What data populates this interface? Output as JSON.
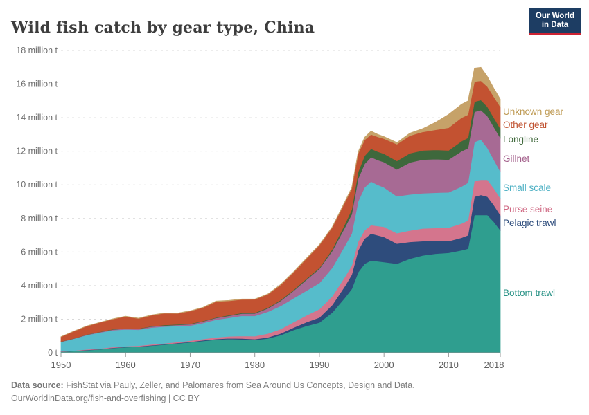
{
  "header": {
    "title": "Wild fish catch by gear type, China",
    "logo": {
      "line1": "Our World",
      "line2": "in Data",
      "bg_color": "#1d3d63",
      "accent_color": "#cd2333"
    }
  },
  "footer": {
    "source_label": "Data source:",
    "source_text": " FishStat via Pauly, Zeller, and Palomares from Sea Around Us Concepts, Design and Data.",
    "url_line": "OurWorldinData.org/fish-and-overfishing | CC BY"
  },
  "chart_data": {
    "type": "area",
    "stacked": true,
    "title": "Wild fish catch by gear type, China",
    "unit": "million t",
    "xlim": [
      1950,
      2018
    ],
    "ylim": [
      0,
      18
    ],
    "grid": "horizontal dashed",
    "legend_position": "right, colored labels next to band ends",
    "x": [
      1950,
      1952,
      1954,
      1956,
      1958,
      1960,
      1962,
      1964,
      1966,
      1968,
      1970,
      1972,
      1974,
      1976,
      1978,
      1980,
      1982,
      1984,
      1986,
      1988,
      1990,
      1992,
      1994,
      1995,
      1996,
      1997,
      1998,
      1999,
      2000,
      2002,
      2004,
      2006,
      2008,
      2010,
      2012,
      2013,
      2014,
      2015,
      2016,
      2017,
      2018
    ],
    "xticks": [
      1950,
      1960,
      1970,
      1980,
      1990,
      2000,
      2010,
      2018
    ],
    "yticks": [
      {
        "v": 0,
        "label": "0 t"
      },
      {
        "v": 2,
        "label": "2 million t"
      },
      {
        "v": 4,
        "label": "4 million t"
      },
      {
        "v": 6,
        "label": "6 million t"
      },
      {
        "v": 8,
        "label": "8 million t"
      },
      {
        "v": 10,
        "label": "10 million t"
      },
      {
        "v": 12,
        "label": "12 million t"
      },
      {
        "v": 14,
        "label": "14 million t"
      },
      {
        "v": 16,
        "label": "16 million t"
      },
      {
        "v": 18,
        "label": "18 million t"
      }
    ],
    "series": [
      {
        "name": "Bottom trawl",
        "color": "#2f9e8f",
        "label_color": "#2a9387",
        "values": [
          0.06,
          0.1,
          0.15,
          0.2,
          0.28,
          0.33,
          0.36,
          0.42,
          0.48,
          0.55,
          0.62,
          0.7,
          0.78,
          0.82,
          0.8,
          0.76,
          0.85,
          1.05,
          1.35,
          1.6,
          1.8,
          2.4,
          3.3,
          3.8,
          4.8,
          5.3,
          5.5,
          5.45,
          5.4,
          5.3,
          5.6,
          5.8,
          5.9,
          5.95,
          6.1,
          6.2,
          8.2,
          8.2,
          8.2,
          7.8,
          7.3
        ]
      },
      {
        "name": "Pelagic trawl",
        "color": "#2e4c7c",
        "label_color": "#2d4c7c",
        "values": [
          0.01,
          0.01,
          0.02,
          0.02,
          0.02,
          0.02,
          0.02,
          0.03,
          0.03,
          0.03,
          0.03,
          0.04,
          0.04,
          0.04,
          0.05,
          0.05,
          0.07,
          0.1,
          0.15,
          0.22,
          0.3,
          0.45,
          0.7,
          0.85,
          1.3,
          1.5,
          1.6,
          1.55,
          1.5,
          1.2,
          1.0,
          0.85,
          0.75,
          0.7,
          0.75,
          0.8,
          1.1,
          1.2,
          1.1,
          1.0,
          0.9
        ]
      },
      {
        "name": "Purse seine",
        "color": "#d4758d",
        "label_color": "#d06a84",
        "values": [
          0.02,
          0.02,
          0.03,
          0.03,
          0.04,
          0.04,
          0.04,
          0.05,
          0.05,
          0.06,
          0.07,
          0.08,
          0.1,
          0.12,
          0.15,
          0.18,
          0.22,
          0.26,
          0.32,
          0.4,
          0.5,
          0.52,
          0.55,
          0.55,
          0.52,
          0.5,
          0.5,
          0.55,
          0.6,
          0.62,
          0.68,
          0.75,
          0.78,
          0.8,
          0.85,
          0.88,
          0.95,
          0.9,
          1.0,
          1.0,
          1.0
        ]
      },
      {
        "name": "Small scale",
        "color": "#56bccb",
        "label_color": "#4fb1c4",
        "values": [
          0.55,
          0.7,
          0.85,
          0.95,
          1.0,
          1.0,
          0.95,
          1.0,
          1.0,
          0.95,
          0.9,
          0.95,
          1.05,
          1.1,
          1.2,
          1.2,
          1.3,
          1.38,
          1.42,
          1.48,
          1.55,
          1.7,
          1.85,
          1.9,
          2.4,
          2.55,
          2.6,
          2.45,
          2.35,
          2.2,
          2.15,
          2.1,
          2.1,
          2.1,
          2.2,
          2.25,
          2.3,
          2.4,
          1.9,
          1.7,
          1.6
        ]
      },
      {
        "name": "Gillnet",
        "color": "#a76a94",
        "label_color": "#a4618c",
        "values": [
          0.02,
          0.02,
          0.03,
          0.03,
          0.04,
          0.05,
          0.05,
          0.06,
          0.06,
          0.07,
          0.08,
          0.09,
          0.1,
          0.12,
          0.13,
          0.15,
          0.2,
          0.3,
          0.45,
          0.65,
          0.85,
          1.0,
          1.1,
          1.15,
          1.35,
          1.4,
          1.45,
          1.48,
          1.5,
          1.6,
          1.9,
          2.0,
          2.0,
          1.95,
          2.1,
          2.05,
          1.8,
          1.75,
          1.9,
          1.95,
          2.0
        ]
      },
      {
        "name": "Longline",
        "color": "#3e683c",
        "label_color": "#40693c",
        "values": [
          0.01,
          0.01,
          0.01,
          0.02,
          0.02,
          0.02,
          0.02,
          0.02,
          0.03,
          0.03,
          0.03,
          0.03,
          0.03,
          0.04,
          0.04,
          0.04,
          0.04,
          0.05,
          0.05,
          0.06,
          0.06,
          0.1,
          0.2,
          0.28,
          0.4,
          0.48,
          0.5,
          0.5,
          0.5,
          0.5,
          0.55,
          0.55,
          0.55,
          0.55,
          0.6,
          0.62,
          0.6,
          0.6,
          0.55,
          0.55,
          0.55
        ]
      },
      {
        "name": "Other gear",
        "color": "#c35231",
        "label_color": "#c0512f",
        "values": [
          0.28,
          0.42,
          0.5,
          0.55,
          0.6,
          0.7,
          0.6,
          0.65,
          0.7,
          0.65,
          0.75,
          0.8,
          0.95,
          0.85,
          0.8,
          0.8,
          0.8,
          0.9,
          1.05,
          1.2,
          1.35,
          1.3,
          1.3,
          1.25,
          1.1,
          0.95,
          0.85,
          0.88,
          0.9,
          1.0,
          1.05,
          1.1,
          1.2,
          1.35,
          1.4,
          1.38,
          1.2,
          1.15,
          1.2,
          1.25,
          1.3
        ]
      },
      {
        "name": "Unknown gear",
        "color": "#c6a269",
        "label_color": "#bf9b55",
        "values": [
          0.01,
          0.01,
          0.01,
          0.01,
          0.02,
          0.02,
          0.02,
          0.02,
          0.02,
          0.02,
          0.02,
          0.02,
          0.03,
          0.03,
          0.03,
          0.02,
          0.02,
          0.03,
          0.03,
          0.03,
          0.03,
          0.04,
          0.05,
          0.06,
          0.1,
          0.15,
          0.2,
          0.15,
          0.12,
          0.1,
          0.15,
          0.2,
          0.45,
          0.8,
          0.8,
          0.82,
          0.8,
          0.8,
          0.6,
          0.5,
          0.45
        ]
      }
    ]
  }
}
